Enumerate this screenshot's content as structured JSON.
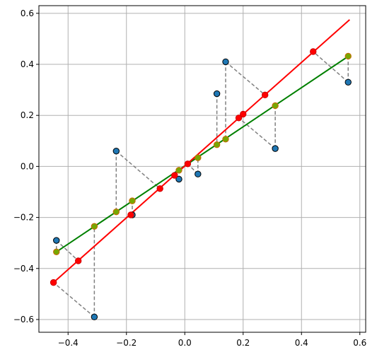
{
  "chart_data": {
    "type": "scatter",
    "title": "",
    "xlabel": "",
    "ylabel": "",
    "xlim": [
      -0.5,
      0.62
    ],
    "ylim": [
      -0.65,
      0.63
    ],
    "grid": true,
    "xticks": [
      -0.4,
      -0.2,
      0.0,
      0.2,
      0.4,
      0.6
    ],
    "xtick_labels": [
      "−0.4",
      "−0.2",
      "0.0",
      "0.2",
      "0.4",
      "0.6"
    ],
    "yticks": [
      -0.6,
      -0.4,
      -0.2,
      0.0,
      0.2,
      0.4,
      0.6
    ],
    "ytick_labels": [
      "−0.6",
      "−0.4",
      "−0.2",
      "0.0",
      "0.2",
      "0.4",
      "0.6"
    ],
    "colors": {
      "points": "#1f77b4",
      "projection_red": "#ff0000",
      "projection_green": "#77a800",
      "line_red": "#ff0000",
      "line_green": "#008000",
      "connector": "#808080"
    },
    "data_points": [
      {
        "x": -0.44,
        "y": -0.29
      },
      {
        "x": -0.31,
        "y": -0.59
      },
      {
        "x": -0.235,
        "y": 0.06
      },
      {
        "x": -0.18,
        "y": -0.19
      },
      {
        "x": -0.02,
        "y": -0.05
      },
      {
        "x": 0.045,
        "y": -0.03
      },
      {
        "x": 0.11,
        "y": 0.285
      },
      {
        "x": 0.14,
        "y": 0.41
      },
      {
        "x": 0.31,
        "y": 0.07
      },
      {
        "x": 0.56,
        "y": 0.33
      }
    ],
    "red_projections": [
      {
        "x": -0.45,
        "y": -0.455
      },
      {
        "x": -0.365,
        "y": -0.37
      },
      {
        "x": -0.185,
        "y": -0.19
      },
      {
        "x": -0.085,
        "y": -0.087
      },
      {
        "x": -0.035,
        "y": -0.035
      },
      {
        "x": 0.01,
        "y": 0.01
      },
      {
        "x": 0.185,
        "y": 0.19
      },
      {
        "x": 0.2,
        "y": 0.205
      },
      {
        "x": 0.275,
        "y": 0.28
      },
      {
        "x": 0.44,
        "y": 0.45
      }
    ],
    "green_projections": [
      {
        "x": -0.44,
        "y": -0.335
      },
      {
        "x": -0.31,
        "y": -0.235
      },
      {
        "x": -0.235,
        "y": -0.178
      },
      {
        "x": -0.18,
        "y": -0.135
      },
      {
        "x": -0.02,
        "y": -0.015
      },
      {
        "x": 0.045,
        "y": 0.034
      },
      {
        "x": 0.11,
        "y": 0.085
      },
      {
        "x": 0.14,
        "y": 0.107
      },
      {
        "x": 0.31,
        "y": 0.238
      },
      {
        "x": 0.56,
        "y": 0.432
      }
    ],
    "red_line": {
      "x": [
        -0.45,
        0.565
      ],
      "y": [
        -0.455,
        0.575
      ]
    },
    "green_line": {
      "x": [
        -0.44,
        0.565
      ],
      "y": [
        -0.335,
        0.435
      ]
    },
    "red_connector_pairs": [
      {
        "from": [
          -0.31,
          -0.59
        ],
        "to": [
          -0.45,
          -0.455
        ]
      },
      {
        "from": [
          -0.44,
          -0.29
        ],
        "to": [
          -0.365,
          -0.37
        ]
      },
      {
        "from": [
          -0.235,
          0.06
        ],
        "to": [
          -0.085,
          -0.087
        ]
      },
      {
        "from": [
          0.045,
          -0.03
        ],
        "to": [
          0.01,
          0.01
        ]
      },
      {
        "from": [
          0.31,
          0.07
        ],
        "to": [
          0.185,
          0.19
        ]
      },
      {
        "from": [
          0.14,
          0.41
        ],
        "to": [
          0.275,
          0.28
        ]
      },
      {
        "from": [
          0.56,
          0.33
        ],
        "to": [
          0.44,
          0.45
        ]
      }
    ]
  }
}
